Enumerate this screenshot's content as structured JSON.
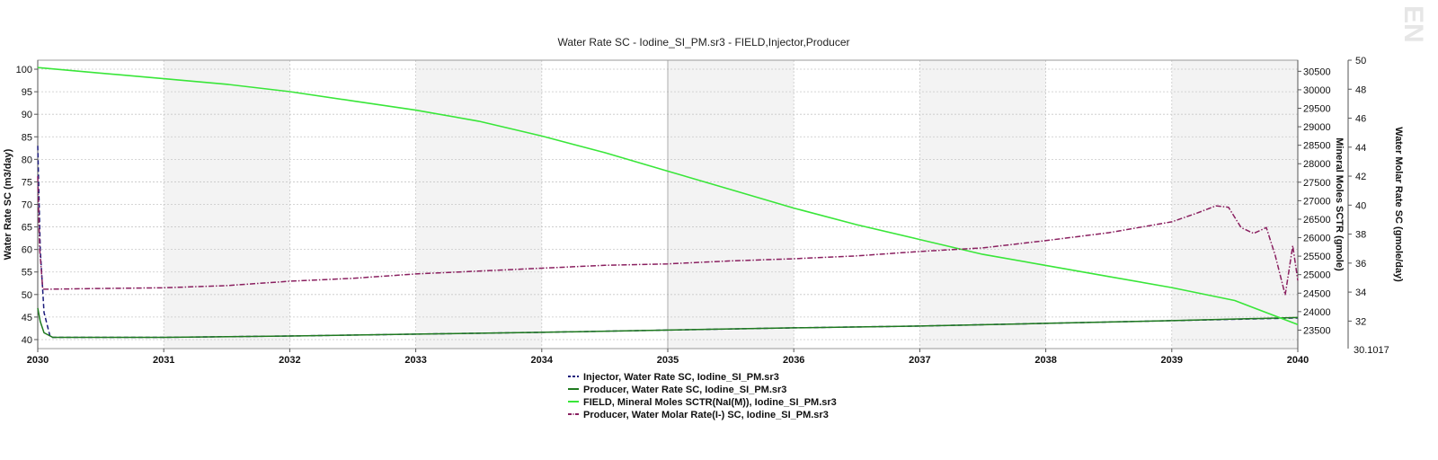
{
  "chart_data": {
    "type": "line",
    "title": "Water Rate SC - Iodine_SI_PM.sr3 - FIELD,Injector,Producer",
    "xlabel": "",
    "x_ticks": [
      "2030",
      "2031",
      "2032",
      "2033",
      "2034",
      "2035",
      "2036",
      "2037",
      "2038",
      "2039",
      "2040"
    ],
    "xlim": [
      2030,
      2040
    ],
    "axes": {
      "left": {
        "label": "Water Rate SC (m3/day)",
        "range": [
          38,
          102
        ],
        "ticks": [
          "100",
          "95",
          "90",
          "85",
          "80",
          "75",
          "70",
          "65",
          "60",
          "55",
          "50",
          "45",
          "40"
        ]
      },
      "right1": {
        "label": "Mineral Moles SCTR (gmole)",
        "range": [
          23000,
          30800
        ],
        "ticks": [
          "30500",
          "30000",
          "29500",
          "29000",
          "28500",
          "28000",
          "27500",
          "27000",
          "26500",
          "26000",
          "25500",
          "25000",
          "24500",
          "24000",
          "23500"
        ]
      },
      "right2": {
        "label": "Water Molar Rate SC (gmole/day)",
        "range": [
          30.1017,
          50
        ],
        "ticks": [
          "50",
          "48",
          "46",
          "44",
          "42",
          "40",
          "38",
          "36",
          "34",
          "32"
        ],
        "min_label": "30.1017"
      }
    },
    "series": [
      {
        "name": "Injector, Water Rate SC, Iodine_SI_PM.sr3",
        "axis": "left",
        "color": "#1a1a7a",
        "dash": "5,3",
        "x": [
          2030,
          2030.02,
          2030.05,
          2030.1,
          2030.3,
          2031,
          2032,
          2033,
          2034,
          2035,
          2036,
          2037,
          2038,
          2039,
          2040
        ],
        "y": [
          83,
          60,
          46,
          40.5,
          40.5,
          40.5,
          40.8,
          41.2,
          41.6,
          42.1,
          42.6,
          43.0,
          43.6,
          44.2,
          44.8
        ]
      },
      {
        "name": "Producer, Water Rate SC, Iodine_SI_PM.sr3",
        "axis": "left",
        "color": "#1f7a1f",
        "dash": "",
        "x": [
          2030,
          2030.02,
          2030.05,
          2030.12,
          2030.3,
          2031,
          2032,
          2033,
          2034,
          2035,
          2036,
          2037,
          2038,
          2039,
          2040
        ],
        "y": [
          47,
          44,
          41.5,
          40.5,
          40.5,
          40.5,
          40.8,
          41.2,
          41.6,
          42.1,
          42.6,
          43.0,
          43.6,
          44.2,
          44.9
        ]
      },
      {
        "name": "FIELD, Mineral Moles SCTR(NaI(M)), Iodine_SI_PM.sr3",
        "axis": "right1",
        "color": "#39e639",
        "dash": "",
        "x": [
          2030,
          2030.5,
          2031,
          2031.5,
          2032,
          2032.5,
          2033,
          2033.5,
          2034,
          2034.5,
          2035,
          2035.5,
          2036,
          2036.5,
          2037,
          2037.5,
          2038,
          2038.5,
          2039,
          2039.5,
          2040
        ],
        "y": [
          30600,
          30450,
          30300,
          30150,
          29950,
          29700,
          29450,
          29150,
          28750,
          28300,
          27800,
          27300,
          26800,
          26350,
          25950,
          25550,
          25250,
          24950,
          24650,
          24300,
          23650
        ]
      },
      {
        "name": "Producer, Water Molar Rate(I-) SC, Iodine_SI_PM.sr3",
        "axis": "right2",
        "color": "#8a2060",
        "dash": "6,2,1.5,2",
        "x": [
          2030,
          2030.015,
          2030.04,
          2030.07,
          2030.5,
          2031,
          2031.5,
          2032,
          2032.5,
          2033,
          2033.5,
          2034,
          2034.5,
          2035,
          2035.5,
          2036,
          2036.5,
          2037,
          2037.5,
          2038,
          2038.5,
          2039,
          2039.2,
          2039.35,
          2039.45,
          2039.55,
          2039.65,
          2039.75,
          2039.82,
          2039.9,
          2039.96,
          2040
        ],
        "y": [
          42,
          37,
          34.2,
          34.2,
          34.25,
          34.3,
          34.45,
          34.75,
          34.95,
          35.25,
          35.45,
          35.65,
          35.85,
          35.95,
          36.15,
          36.3,
          36.5,
          36.8,
          37.05,
          37.55,
          38.1,
          38.85,
          39.45,
          39.95,
          39.85,
          38.45,
          38.05,
          38.45,
          36.55,
          33.8,
          37.2,
          34.8
        ]
      }
    ],
    "legend_position": "bottom-center",
    "grid": true,
    "watermark": "EN"
  }
}
